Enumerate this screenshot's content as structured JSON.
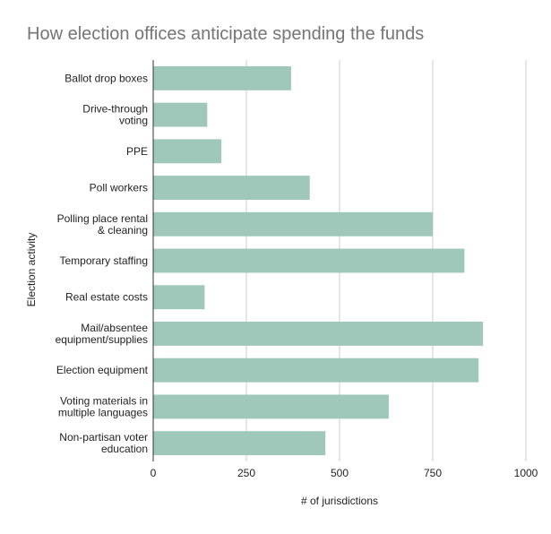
{
  "chart_data": {
    "type": "bar",
    "orientation": "horizontal",
    "title": "How election offices anticipate spending the funds",
    "xlabel": "# of jurisdictions",
    "ylabel": "Election activity",
    "xlim": [
      0,
      1000
    ],
    "xticks": [
      0,
      250,
      500,
      750,
      1000
    ],
    "grid": true,
    "categories": [
      [
        "Ballot drop boxes"
      ],
      [
        "Drive-through",
        "voting"
      ],
      [
        "PPE"
      ],
      [
        "Poll workers"
      ],
      [
        "Polling place rental",
        "& cleaning"
      ],
      [
        "Temporary staffing"
      ],
      [
        "Real estate costs"
      ],
      [
        "Mail/absentee",
        "equipment/supplies"
      ],
      [
        "Election equipment"
      ],
      [
        "Voting materials in",
        "multiple languages"
      ],
      [
        "Non-partisan voter",
        "education"
      ]
    ],
    "values": [
      370,
      145,
      183,
      420,
      750,
      835,
      138,
      885,
      873,
      632,
      462
    ],
    "colors": {
      "bar": "#9fc8ba",
      "grid": "#cccccc",
      "axis": "#333333",
      "title": "#757575",
      "text": "#222222"
    }
  }
}
